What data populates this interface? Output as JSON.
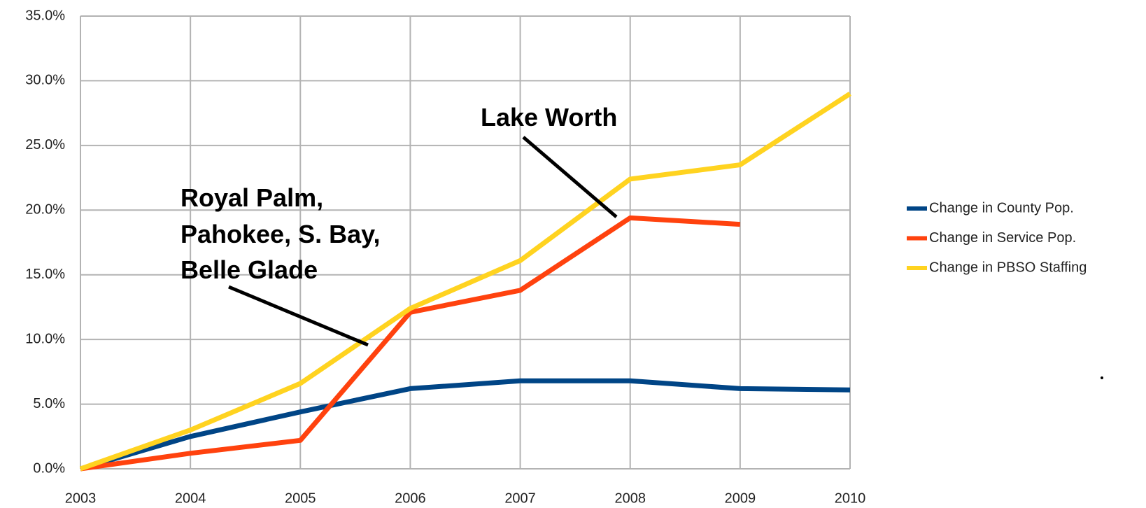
{
  "chart_data": {
    "type": "line",
    "x": [
      2003,
      2004,
      2005,
      2006,
      2007,
      2008,
      2009,
      2010
    ],
    "xlim": [
      2003,
      2010
    ],
    "xticks": [
      2003,
      2004,
      2005,
      2006,
      2007,
      2008,
      2009,
      2010
    ],
    "ylim": [
      0,
      35
    ],
    "yticks": [
      {
        "value": 0,
        "label": "0.0%"
      },
      {
        "value": 5,
        "label": "5.0%"
      },
      {
        "value": 10,
        "label": "10.0%"
      },
      {
        "value": 15,
        "label": "15.0%"
      },
      {
        "value": 20,
        "label": "20.0%"
      },
      {
        "value": 25,
        "label": "25.0%"
      },
      {
        "value": 30,
        "label": "30.0%"
      },
      {
        "value": 35,
        "label": "35.0%"
      }
    ],
    "grid": true,
    "legend": "right",
    "series": [
      {
        "name": "Change in County Pop.",
        "color": "#004586",
        "values": [
          0,
          2.5,
          4.4,
          6.2,
          6.8,
          6.8,
          6.2,
          6.1
        ]
      },
      {
        "name": "Change in Service Pop.",
        "color": "#ff420e",
        "values": [
          0,
          1.2,
          2.2,
          12.1,
          13.8,
          19.4,
          18.9,
          null
        ]
      },
      {
        "name": "Change in PBSO Staffing",
        "color": "#ffd320",
        "values": [
          0,
          3.0,
          6.6,
          12.4,
          16.1,
          22.4,
          23.5,
          29.0
        ]
      }
    ],
    "annotations": [
      {
        "lines": [
          "Lake Worth"
        ]
      },
      {
        "lines": [
          "Royal Palm,",
          "Pahokee, S. Bay,",
          "Belle Glade"
        ]
      }
    ]
  }
}
